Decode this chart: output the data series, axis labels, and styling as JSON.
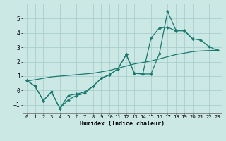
{
  "xlabel": "Humidex (Indice chaleur)",
  "bg_color": "#cce8e5",
  "grid_color": "#aacfcc",
  "line_color": "#1a7a6e",
  "xlim_min": -0.5,
  "xlim_max": 23.5,
  "ylim_min": -1.55,
  "ylim_max": 6.0,
  "yticks": [
    -1,
    0,
    1,
    2,
    3,
    4,
    5
  ],
  "xticks": [
    0,
    1,
    2,
    3,
    4,
    5,
    6,
    7,
    8,
    9,
    10,
    11,
    12,
    13,
    14,
    15,
    16,
    17,
    18,
    19,
    20,
    21,
    22,
    23
  ],
  "s1_x": [
    0,
    1,
    2,
    3,
    4,
    5,
    6,
    7,
    8,
    9,
    10,
    11,
    12,
    13,
    14,
    15,
    16,
    17,
    18,
    19,
    20,
    21,
    22,
    23
  ],
  "s1_y": [
    0.7,
    0.3,
    -0.7,
    -0.1,
    -1.25,
    -0.65,
    -0.35,
    -0.2,
    0.3,
    0.85,
    1.1,
    1.5,
    2.5,
    1.2,
    1.15,
    1.15,
    2.55,
    5.5,
    4.2,
    4.2,
    3.6,
    3.5,
    3.05,
    2.8
  ],
  "s2_x": [
    0,
    1,
    2,
    3,
    4,
    5,
    6,
    7,
    8,
    9,
    10,
    11,
    12,
    13,
    14,
    15,
    16,
    17,
    18,
    19,
    20
  ],
  "s2_y": [
    0.7,
    0.3,
    -0.7,
    -0.1,
    -1.25,
    -0.35,
    -0.25,
    -0.1,
    0.3,
    0.85,
    1.1,
    1.5,
    2.5,
    1.2,
    1.15,
    3.65,
    4.35,
    4.4,
    4.15,
    4.15,
    3.6
  ],
  "s3_x": [
    0,
    1,
    2,
    3,
    4,
    5,
    6,
    7,
    8,
    9,
    10,
    11,
    12,
    13,
    14,
    15,
    16,
    17,
    18,
    19,
    20,
    21,
    22,
    23
  ],
  "s3_y": [
    0.65,
    0.75,
    0.85,
    0.95,
    1.0,
    1.05,
    1.1,
    1.15,
    1.2,
    1.3,
    1.4,
    1.55,
    1.7,
    1.85,
    1.95,
    2.05,
    2.2,
    2.35,
    2.5,
    2.6,
    2.7,
    2.75,
    2.78,
    2.8
  ]
}
